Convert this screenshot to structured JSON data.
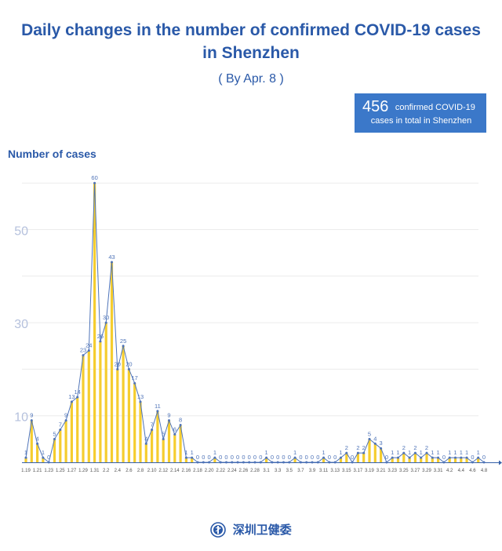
{
  "title_line1": "Daily changes in the number of confirmed COVID-19 cases",
  "title_line2": "in Shenzhen",
  "subtitle": "( By Apr. 8 )",
  "summary": {
    "total": "456",
    "text_line1": "confirmed COVID-19",
    "text_line2": "cases in total in Shenzhen"
  },
  "footer": {
    "text": "深圳卫健委",
    "logo_icon": "health-commission-emblem-icon"
  },
  "colors": {
    "title": "#2a59a8",
    "bar": "#f5cd2f",
    "line": "#4f74b8",
    "axis": "#3561a8",
    "grid": "#ececec",
    "ytick": "#b5c1dd"
  },
  "chart_data": {
    "type": "bar",
    "title": "",
    "ylabel": "Number of cases",
    "xlabel": "",
    "ylim": [
      0,
      60
    ],
    "yticks": [
      10,
      30,
      50
    ],
    "tick_labels": [
      "1.19",
      "1.21",
      "1.23",
      "1.25",
      "1.27",
      "1.29",
      "1.31",
      "2.2",
      "2.4",
      "2.6",
      "2.8",
      "2.10",
      "2.12",
      "2.14",
      "2.16",
      "2.18",
      "2.20",
      "2.22",
      "2.24",
      "2.26",
      "2.28",
      "3.1",
      "3.3",
      "3.5",
      "3.7",
      "3.9",
      "3.11",
      "3.13",
      "3.15",
      "3.17",
      "3.19",
      "3.21",
      "3.23",
      "3.25",
      "3.27",
      "3.29",
      "3.31",
      "4.2",
      "4.4",
      "4.6",
      "4.8"
    ],
    "categories": [
      "1.19",
      "1.20",
      "1.21",
      "1.22",
      "1.23",
      "1.24",
      "1.25",
      "1.26",
      "1.27",
      "1.28",
      "1.29",
      "1.30",
      "1.31",
      "2.1",
      "2.2",
      "2.3",
      "2.4",
      "2.5",
      "2.6",
      "2.7",
      "2.8",
      "2.9",
      "2.10",
      "2.11",
      "2.12",
      "2.13",
      "2.14",
      "2.15",
      "2.16",
      "2.17",
      "2.18",
      "2.19",
      "2.20",
      "2.21",
      "2.22",
      "2.23",
      "2.24",
      "2.25",
      "2.26",
      "2.27",
      "2.28",
      "2.29",
      "3.1",
      "3.2",
      "3.3",
      "3.4",
      "3.5",
      "3.6",
      "3.7",
      "3.8",
      "3.9",
      "3.10",
      "3.11",
      "3.12",
      "3.13",
      "3.14",
      "3.15",
      "3.16",
      "3.17",
      "3.18",
      "3.19",
      "3.20",
      "3.21",
      "3.22",
      "3.23",
      "3.24",
      "3.25",
      "3.26",
      "3.27",
      "3.28",
      "3.29",
      "3.30",
      "3.31",
      "4.1",
      "4.2",
      "4.3",
      "4.4",
      "4.5",
      "4.6",
      "4.7",
      "4.8"
    ],
    "values": [
      1,
      9,
      4,
      1,
      0,
      5,
      7,
      9,
      13,
      14,
      23,
      24,
      60,
      26,
      30,
      43,
      20,
      25,
      20,
      17,
      13,
      4,
      7,
      11,
      5,
      9,
      6,
      8,
      1,
      1,
      0,
      0,
      0,
      1,
      0,
      0,
      0,
      0,
      0,
      0,
      0,
      0,
      1,
      0,
      0,
      0,
      0,
      1,
      0,
      0,
      0,
      0,
      1,
      0,
      0,
      1,
      2,
      0,
      2,
      2,
      5,
      4,
      3,
      0,
      1,
      1,
      2,
      1,
      2,
      1,
      2,
      1,
      1,
      0,
      1,
      1,
      1,
      1,
      0,
      1,
      0
    ]
  }
}
